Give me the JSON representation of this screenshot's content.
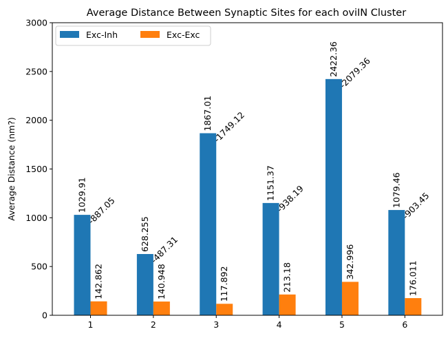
{
  "chart_data": {
    "type": "bar",
    "title": "Average Distance Between Synaptic Sites for each oviIN Cluster",
    "xlabel": "",
    "ylabel": "Average Distance (nm?)",
    "ylim": [
      0,
      3000
    ],
    "yticks": [
      0,
      500,
      1000,
      1500,
      2000,
      2500,
      3000
    ],
    "categories": [
      "1",
      "2",
      "3",
      "4",
      "5",
      "6"
    ],
    "legend_placement": "top-left",
    "grid": false,
    "series": [
      {
        "name": "Exc-Inh",
        "color": "#1f77b4",
        "values": [
          1029.91,
          628.255,
          1867.01,
          1151.37,
          2422.36,
          1079.46
        ],
        "labels": [
          "1029.91",
          "628.255",
          "1867.01",
          "1151.37",
          "2422.36",
          "1079.46"
        ]
      },
      {
        "name": "Exc-Exc",
        "color": "#ff7f0e",
        "values": [
          142.862,
          140.948,
          117.892,
          213.18,
          342.996,
          176.011
        ],
        "labels": [
          "142.862",
          "140.948",
          "117.892",
          "213.18",
          "342.996",
          "176.011"
        ]
      }
    ],
    "difference_labels": [
      "-887.05",
      "-487.31",
      "-1749.12",
      "-938.19",
      "-2079.36",
      "-903.45"
    ]
  }
}
